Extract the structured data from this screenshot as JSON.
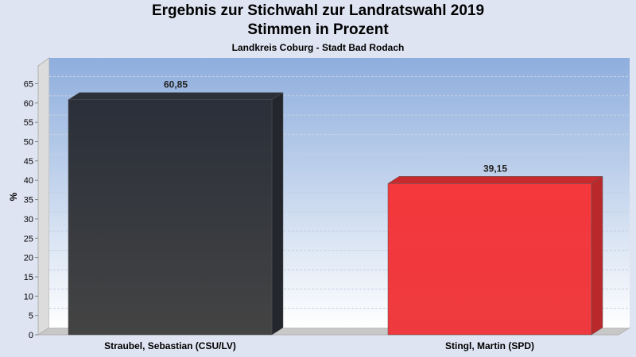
{
  "chart_data": {
    "type": "bar",
    "title": "Ergebnis zur Stichwahl zur Landratswahl 2019",
    "title2": "Stimmen in Prozent",
    "subtitle": "Landkreis Coburg - Stadt Bad Rodach",
    "ylabel": "%",
    "ylim": [
      0,
      70
    ],
    "yticks": [
      0,
      5,
      10,
      15,
      20,
      25,
      30,
      35,
      40,
      45,
      50,
      55,
      60,
      65
    ],
    "categories": [
      "Straubel, Sebastian (CSU/LV)",
      "Stingl, Martin (SPD)"
    ],
    "values": [
      60.85,
      39.15
    ],
    "value_labels": [
      "60,85",
      "39,15"
    ],
    "bar_colors": [
      "#33363c",
      "#f0383c"
    ],
    "grid": true,
    "legend": "none"
  }
}
